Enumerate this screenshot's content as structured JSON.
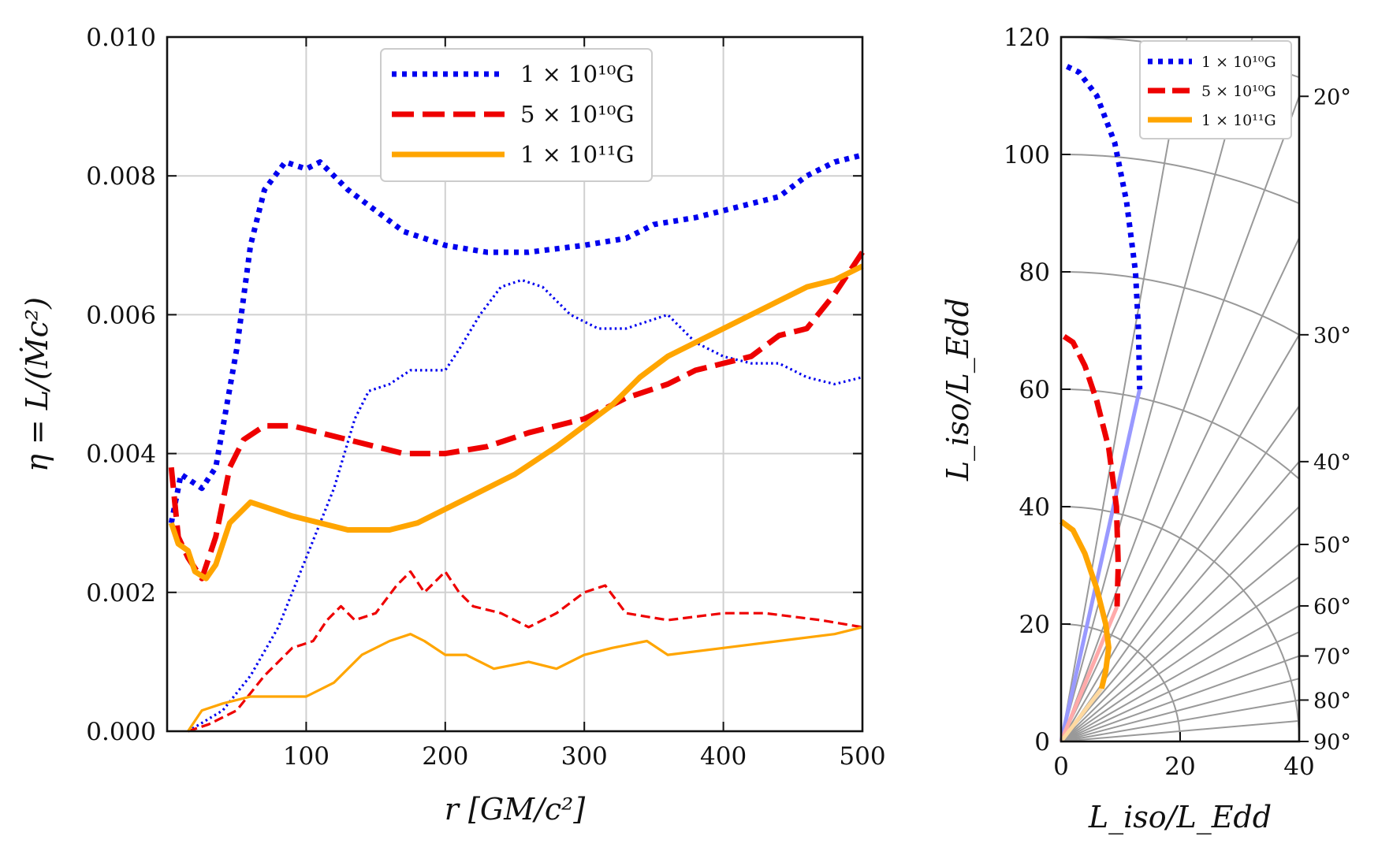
{
  "chart_data": [
    {
      "type": "line",
      "xlabel": "r [GM/c²]",
      "ylabel": "η = L/(Ṁc²)",
      "xlim": [
        0,
        500
      ],
      "ylim": [
        0,
        0.01
      ],
      "x_ticks": [
        "100",
        "200",
        "300",
        "400",
        "500"
      ],
      "y_ticks": [
        "0.000",
        "0.002",
        "0.004",
        "0.006",
        "0.008",
        "0.010"
      ],
      "grid": true,
      "legend": {
        "position": "top-center",
        "entries": [
          {
            "label": "1 × 10¹⁰G",
            "color": "#0000ee",
            "style": "dotted"
          },
          {
            "label": "5 × 10¹⁰G",
            "color": "#ee0000",
            "style": "dashed"
          },
          {
            "label": "1 × 10¹¹G",
            "color": "#ffa500",
            "style": "solid"
          }
        ]
      },
      "series": [
        {
          "name": "1e10 thick",
          "color": "#0000ee",
          "style": "dotted",
          "width": "thick",
          "points": [
            [
              3,
              0.003
            ],
            [
              10,
              0.0037
            ],
            [
              25,
              0.0035
            ],
            [
              35,
              0.0038
            ],
            [
              50,
              0.0055
            ],
            [
              60,
              0.007
            ],
            [
              70,
              0.0078
            ],
            [
              85,
              0.0082
            ],
            [
              100,
              0.0081
            ],
            [
              110,
              0.0082
            ],
            [
              130,
              0.0078
            ],
            [
              150,
              0.0075
            ],
            [
              170,
              0.0072
            ],
            [
              200,
              0.007
            ],
            [
              230,
              0.0069
            ],
            [
              260,
              0.0069
            ],
            [
              300,
              0.007
            ],
            [
              330,
              0.0071
            ],
            [
              350,
              0.0073
            ],
            [
              380,
              0.0074
            ],
            [
              420,
              0.0076
            ],
            [
              440,
              0.0077
            ],
            [
              460,
              0.008
            ],
            [
              480,
              0.0082
            ],
            [
              500,
              0.0083
            ]
          ]
        },
        {
          "name": "1e10 thin",
          "color": "#0000ee",
          "style": "dotted",
          "width": "thin",
          "points": [
            [
              15,
              0.0
            ],
            [
              40,
              0.0003
            ],
            [
              60,
              0.0008
            ],
            [
              80,
              0.0015
            ],
            [
              100,
              0.0025
            ],
            [
              120,
              0.0035
            ],
            [
              135,
              0.0045
            ],
            [
              145,
              0.0049
            ],
            [
              160,
              0.005
            ],
            [
              175,
              0.0052
            ],
            [
              200,
              0.0052
            ],
            [
              210,
              0.0055
            ],
            [
              225,
              0.006
            ],
            [
              240,
              0.0064
            ],
            [
              255,
              0.0065
            ],
            [
              270,
              0.0064
            ],
            [
              290,
              0.006
            ],
            [
              310,
              0.0058
            ],
            [
              330,
              0.0058
            ],
            [
              360,
              0.006
            ],
            [
              380,
              0.0056
            ],
            [
              400,
              0.0054
            ],
            [
              420,
              0.0053
            ],
            [
              440,
              0.0053
            ],
            [
              460,
              0.0051
            ],
            [
              480,
              0.005
            ],
            [
              500,
              0.0051
            ]
          ]
        },
        {
          "name": "5e10 thick",
          "color": "#ee0000",
          "style": "dashed",
          "width": "thick",
          "points": [
            [
              3,
              0.0038
            ],
            [
              8,
              0.0028
            ],
            [
              15,
              0.0025
            ],
            [
              25,
              0.0022
            ],
            [
              35,
              0.0028
            ],
            [
              45,
              0.0038
            ],
            [
              55,
              0.0042
            ],
            [
              70,
              0.0044
            ],
            [
              90,
              0.0044
            ],
            [
              110,
              0.0043
            ],
            [
              130,
              0.0042
            ],
            [
              150,
              0.0041
            ],
            [
              170,
              0.004
            ],
            [
              200,
              0.004
            ],
            [
              230,
              0.0041
            ],
            [
              260,
              0.0043
            ],
            [
              300,
              0.0045
            ],
            [
              330,
              0.0048
            ],
            [
              360,
              0.005
            ],
            [
              380,
              0.0052
            ],
            [
              400,
              0.0053
            ],
            [
              420,
              0.0054
            ],
            [
              440,
              0.0057
            ],
            [
              460,
              0.0058
            ],
            [
              480,
              0.0063
            ],
            [
              500,
              0.0069
            ]
          ]
        },
        {
          "name": "5e10 thin",
          "color": "#ee0000",
          "style": "dashed",
          "width": "thin",
          "points": [
            [
              15,
              0.0
            ],
            [
              30,
              0.0001
            ],
            [
              50,
              0.0003
            ],
            [
              70,
              0.0008
            ],
            [
              90,
              0.0012
            ],
            [
              105,
              0.0013
            ],
            [
              115,
              0.0016
            ],
            [
              125,
              0.0018
            ],
            [
              135,
              0.0016
            ],
            [
              150,
              0.0017
            ],
            [
              165,
              0.0021
            ],
            [
              175,
              0.0023
            ],
            [
              185,
              0.002
            ],
            [
              200,
              0.0023
            ],
            [
              210,
              0.002
            ],
            [
              220,
              0.0018
            ],
            [
              240,
              0.0017
            ],
            [
              260,
              0.0015
            ],
            [
              280,
              0.0017
            ],
            [
              300,
              0.002
            ],
            [
              315,
              0.0021
            ],
            [
              330,
              0.0017
            ],
            [
              360,
              0.0016
            ],
            [
              400,
              0.0017
            ],
            [
              430,
              0.0017
            ],
            [
              470,
              0.0016
            ],
            [
              500,
              0.0015
            ]
          ]
        },
        {
          "name": "1e11 thick",
          "color": "#ffa500",
          "style": "solid",
          "width": "thick",
          "points": [
            [
              3,
              0.003
            ],
            [
              8,
              0.0027
            ],
            [
              15,
              0.0026
            ],
            [
              20,
              0.0023
            ],
            [
              28,
              0.0022
            ],
            [
              35,
              0.0024
            ],
            [
              45,
              0.003
            ],
            [
              60,
              0.0033
            ],
            [
              75,
              0.0032
            ],
            [
              90,
              0.0031
            ],
            [
              110,
              0.003
            ],
            [
              130,
              0.0029
            ],
            [
              160,
              0.0029
            ],
            [
              180,
              0.003
            ],
            [
              200,
              0.0032
            ],
            [
              220,
              0.0034
            ],
            [
              250,
              0.0037
            ],
            [
              280,
              0.0041
            ],
            [
              300,
              0.0044
            ],
            [
              320,
              0.0047
            ],
            [
              340,
              0.0051
            ],
            [
              360,
              0.0054
            ],
            [
              380,
              0.0056
            ],
            [
              400,
              0.0058
            ],
            [
              420,
              0.006
            ],
            [
              440,
              0.0062
            ],
            [
              460,
              0.0064
            ],
            [
              480,
              0.0065
            ],
            [
              500,
              0.0067
            ]
          ]
        },
        {
          "name": "1e11 thin",
          "color": "#ffa500",
          "style": "solid",
          "width": "thin",
          "points": [
            [
              15,
              0.0
            ],
            [
              25,
              0.0003
            ],
            [
              40,
              0.0004
            ],
            [
              60,
              0.0005
            ],
            [
              80,
              0.0005
            ],
            [
              100,
              0.0005
            ],
            [
              120,
              0.0007
            ],
            [
              140,
              0.0011
            ],
            [
              160,
              0.0013
            ],
            [
              175,
              0.0014
            ],
            [
              185,
              0.0013
            ],
            [
              200,
              0.0011
            ],
            [
              215,
              0.0011
            ],
            [
              235,
              0.0009
            ],
            [
              260,
              0.001
            ],
            [
              280,
              0.0009
            ],
            [
              300,
              0.0011
            ],
            [
              320,
              0.0012
            ],
            [
              345,
              0.0013
            ],
            [
              360,
              0.0011
            ],
            [
              400,
              0.0012
            ],
            [
              440,
              0.0013
            ],
            [
              480,
              0.0014
            ],
            [
              500,
              0.0015
            ]
          ]
        }
      ]
    },
    {
      "type": "line",
      "xlabel": "L_iso/L_Edd",
      "ylabel": "L_iso/L_Edd",
      "xlim": [
        0,
        40
      ],
      "ylim": [
        0,
        120
      ],
      "x_ticks": [
        "0",
        "20",
        "40"
      ],
      "y_ticks": [
        "0",
        "20",
        "40",
        "60",
        "80",
        "100",
        "120"
      ],
      "arcs": [
        20,
        40,
        60,
        80,
        100,
        120
      ],
      "angle_labels": [
        "20°",
        "30°",
        "40°",
        "50°",
        "60°",
        "70°",
        "80°",
        "90°"
      ],
      "angles": [
        20,
        30,
        40,
        50,
        60,
        70,
        80,
        90
      ],
      "legend": {
        "position": "top-right",
        "entries": [
          {
            "label": "1 × 10¹⁰G",
            "color": "#0000ee",
            "style": "dotted"
          },
          {
            "label": "5 × 10¹⁰G",
            "color": "#ee0000",
            "style": "dashed"
          },
          {
            "label": "1 × 10¹¹G",
            "color": "#ffa500",
            "style": "solid"
          }
        ]
      },
      "series": [
        {
          "name": "1e10",
          "color": "#0000ee",
          "style": "dotted",
          "points": [
            [
              1,
              115
            ],
            [
              3,
              114
            ],
            [
              6,
              110
            ],
            [
              9,
              102
            ],
            [
              11,
              92
            ],
            [
              12.5,
              80
            ],
            [
              13,
              70
            ],
            [
              13.2,
              60
            ]
          ]
        },
        {
          "name": "5e10",
          "color": "#ee0000",
          "style": "dashed",
          "points": [
            [
              0.5,
              69
            ],
            [
              2,
              68
            ],
            [
              4,
              64
            ],
            [
              6,
              58
            ],
            [
              8,
              50
            ],
            [
              9.3,
              40
            ],
            [
              9.6,
              30
            ],
            [
              9.4,
              23
            ]
          ]
        },
        {
          "name": "1e11",
          "color": "#ffa500",
          "style": "solid",
          "points": [
            [
              0,
              37.5
            ],
            [
              2,
              36
            ],
            [
              4,
              32
            ],
            [
              6,
              26
            ],
            [
              7.5,
              20
            ],
            [
              8,
              16
            ],
            [
              7.5,
              12
            ],
            [
              6.8,
              9
            ]
          ]
        }
      ],
      "faded_rays": [
        {
          "color": "#9999ff",
          "end": [
            13.2,
            60
          ]
        },
        {
          "color": "#ffaaaa",
          "end": [
            9.4,
            23
          ]
        },
        {
          "color": "#ffd9a0",
          "end": [
            6.8,
            9
          ]
        }
      ]
    }
  ]
}
